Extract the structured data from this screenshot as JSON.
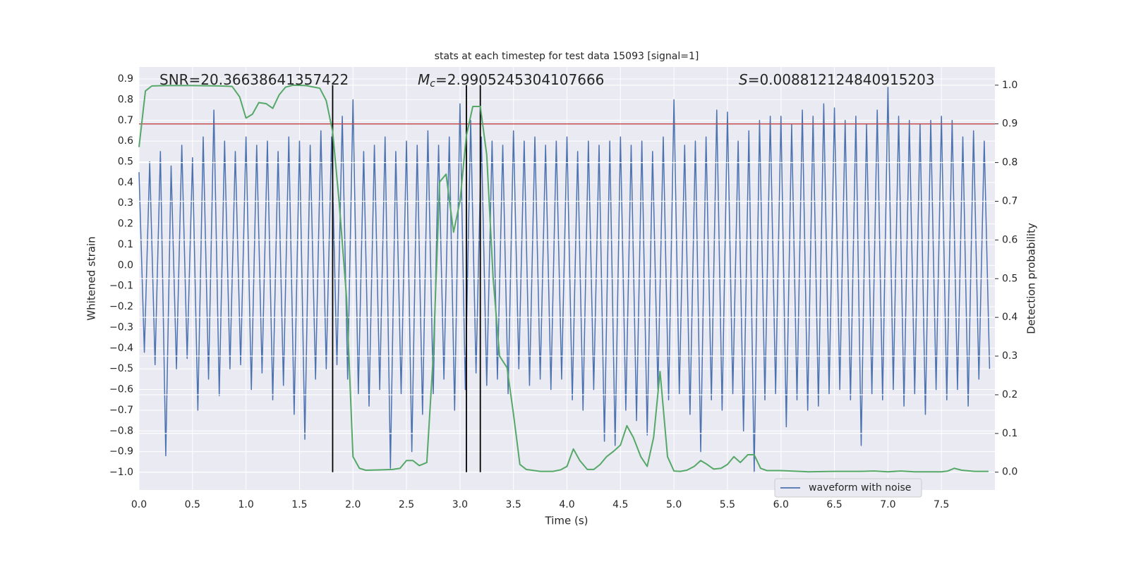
{
  "chart_data": {
    "type": "line",
    "title": "stats at each timestep for test data 15093 [signal=1]",
    "x_label": "Time (s)",
    "y_label": "Whitened strain",
    "y2_label": "Detection probability",
    "xlim": [
      0,
      8
    ],
    "ylim": [
      -1.085,
      0.958
    ],
    "y2lim": [
      -0.046,
      1.047
    ],
    "grid": true,
    "legend": "lower right",
    "xticks": [
      {
        "value": 0,
        "label": "0.0"
      },
      0.5,
      {
        "value": 1,
        "label": "1.0"
      },
      1.5,
      {
        "value": 2,
        "label": "2.0"
      },
      2.5,
      {
        "value": 3,
        "label": "3.0"
      },
      3.5,
      {
        "value": 4,
        "label": "4.0"
      },
      4.5,
      {
        "value": 5,
        "label": "5.0"
      },
      5.5,
      {
        "value": 6,
        "label": "6.0"
      },
      6.5,
      {
        "value": 7,
        "label": "7.0"
      },
      7.5
    ],
    "yticks": [
      {
        "value": -1,
        "label": "−1.0"
      },
      {
        "value": -0.9,
        "label": "−0.9"
      },
      {
        "value": -0.8,
        "label": "−0.8"
      },
      {
        "value": -0.7,
        "label": "−0.7"
      },
      {
        "value": -0.6,
        "label": "−0.6"
      },
      {
        "value": -0.5,
        "label": "−0.5"
      },
      {
        "value": -0.4,
        "label": "−0.4"
      },
      {
        "value": -0.3,
        "label": "−0.3"
      },
      {
        "value": -0.2,
        "label": "−0.2"
      },
      {
        "value": -0.1,
        "label": "−0.1"
      },
      {
        "value": 0,
        "label": "0.0"
      },
      0.1,
      0.2,
      0.3,
      0.4,
      0.5,
      0.6,
      0.7,
      0.8,
      0.9
    ],
    "y2ticks": [
      {
        "value": 0,
        "label": "0.0"
      },
      0.1,
      0.2,
      0.3,
      0.4,
      0.5,
      0.6,
      0.7,
      0.8,
      0.9,
      {
        "value": 1,
        "label": "1.0"
      }
    ],
    "threshold": {
      "value": 0.9,
      "axis": "y2",
      "color": "#c44e52"
    },
    "vlines": {
      "x": [
        1.81,
        3.06,
        3.19
      ],
      "range": [
        0,
        1
      ],
      "axis": "y2",
      "color": "#000000"
    },
    "annotations": [
      {
        "text": "SNR=20.36638641357422"
      },
      {
        "symbol": "M",
        "subscript": "c",
        "text": "=2.9905245304107666"
      },
      {
        "symbol": "S",
        "text": "=0.008812124840915203"
      }
    ],
    "series": [
      {
        "name": "waveform with noise",
        "color": "#4c72b0",
        "x": [
          0,
          0.05,
          0.1,
          0.15,
          0.2,
          0.25,
          0.3,
          0.35,
          0.4,
          0.45,
          0.5,
          0.55,
          0.6,
          0.65,
          0.7,
          0.75,
          0.8,
          0.85,
          0.9,
          0.95,
          1,
          1.05,
          1.1,
          1.15,
          1.2,
          1.25,
          1.3,
          1.35,
          1.4,
          1.45,
          1.5,
          1.55,
          1.6,
          1.65,
          1.7,
          1.75,
          1.8,
          1.85,
          1.9,
          1.95,
          2,
          2.05,
          2.1,
          2.15,
          2.2,
          2.25,
          2.3,
          2.35,
          2.4,
          2.45,
          2.5,
          2.55,
          2.6,
          2.65,
          2.7,
          2.75,
          2.8,
          2.85,
          2.9,
          2.95,
          3,
          3.05,
          3.1,
          3.15,
          3.2,
          3.25,
          3.3,
          3.35,
          3.4,
          3.45,
          3.5,
          3.55,
          3.6,
          3.65,
          3.7,
          3.75,
          3.8,
          3.85,
          3.9,
          3.95,
          4,
          4.05,
          4.1,
          4.15,
          4.2,
          4.25,
          4.3,
          4.35,
          4.4,
          4.45,
          4.5,
          4.55,
          4.6,
          4.65,
          4.7,
          4.75,
          4.8,
          4.85,
          4.9,
          4.95,
          5,
          5.05,
          5.1,
          5.15,
          5.2,
          5.25,
          5.3,
          5.35,
          5.4,
          5.45,
          5.5,
          5.55,
          5.6,
          5.65,
          5.7,
          5.75,
          5.8,
          5.85,
          5.9,
          5.95,
          6,
          6.05,
          6.1,
          6.15,
          6.2,
          6.25,
          6.3,
          6.35,
          6.4,
          6.45,
          6.5,
          6.55,
          6.6,
          6.65,
          6.7,
          6.75,
          6.8,
          6.85,
          6.9,
          6.95,
          7,
          7.05,
          7.1,
          7.15,
          7.2,
          7.25,
          7.3,
          7.35,
          7.4,
          7.45,
          7.5,
          7.55,
          7.6,
          7.65,
          7.7,
          7.75,
          7.8,
          7.85,
          7.9,
          7.95
        ],
        "values": [
          0.45,
          -0.42,
          0.5,
          -0.48,
          0.55,
          -0.92,
          0.48,
          -0.5,
          0.58,
          -0.45,
          0.52,
          -0.7,
          0.62,
          -0.55,
          0.75,
          -0.63,
          0.6,
          -0.5,
          0.55,
          -0.48,
          0.62,
          -0.6,
          0.58,
          -0.52,
          0.6,
          -0.65,
          0.55,
          -0.58,
          0.62,
          -0.72,
          0.6,
          -0.84,
          0.58,
          -0.55,
          0.65,
          -0.5,
          0.62,
          -0.48,
          0.72,
          -0.55,
          0.8,
          -0.62,
          0.55,
          -0.68,
          0.58,
          -0.6,
          0.62,
          -0.98,
          0.55,
          -0.62,
          0.6,
          -0.9,
          0.58,
          -0.72,
          0.65,
          -0.62,
          0.58,
          -0.55,
          0.62,
          -0.7,
          0.78,
          -0.6,
          0.7,
          -0.52,
          0.62,
          -0.58,
          0.6,
          -0.55,
          0.58,
          -0.62,
          0.65,
          -0.5,
          0.6,
          -0.58,
          0.62,
          -0.55,
          0.58,
          -0.6,
          0.6,
          -0.55,
          0.62,
          -0.65,
          0.55,
          -0.7,
          0.6,
          -0.6,
          0.58,
          -0.85,
          0.6,
          -0.87,
          0.62,
          -0.7,
          0.58,
          -0.75,
          0.6,
          -0.82,
          0.55,
          -0.6,
          0.62,
          -0.65,
          0.8,
          -0.62,
          0.58,
          -0.72,
          0.6,
          -0.9,
          0.62,
          -0.65,
          0.75,
          -0.7,
          0.74,
          -0.62,
          0.6,
          -0.8,
          0.65,
          -1.0,
          0.7,
          -0.65,
          0.72,
          -0.62,
          0.72,
          -0.78,
          0.68,
          -0.65,
          0.75,
          -0.7,
          0.72,
          -0.68,
          0.78,
          -0.62,
          0.76,
          -0.6,
          0.7,
          -0.65,
          0.72,
          -0.87,
          0.68,
          -0.62,
          0.75,
          -0.65,
          0.86,
          -0.6,
          0.72,
          -0.68,
          0.7,
          -0.62,
          0.68,
          -0.72,
          0.7,
          -0.6,
          0.72,
          -0.65,
          0.7,
          -0.6,
          0.62,
          -0.68,
          0.65,
          -0.55,
          0.6,
          -0.5
        ]
      },
      {
        "axis": "y2",
        "color": "#55a868",
        "x": [
          0,
          0.06,
          0.12,
          0.25,
          0.5,
          0.75,
          0.87,
          0.94,
          1.0,
          1.06,
          1.12,
          1.19,
          1.25,
          1.31,
          1.37,
          1.44,
          1.56,
          1.69,
          1.75,
          1.81,
          1.87,
          1.94,
          2.0,
          2.06,
          2.12,
          2.25,
          2.37,
          2.44,
          2.5,
          2.56,
          2.62,
          2.69,
          2.75,
          2.81,
          2.87,
          2.94,
          3.0,
          3.06,
          3.12,
          3.19,
          3.25,
          3.31,
          3.37,
          3.44,
          3.5,
          3.56,
          3.62,
          3.75,
          3.87,
          3.94,
          4.0,
          4.06,
          4.12,
          4.19,
          4.25,
          4.31,
          4.37,
          4.44,
          4.5,
          4.56,
          4.62,
          4.69,
          4.75,
          4.81,
          4.87,
          4.94,
          5.0,
          5.06,
          5.12,
          5.19,
          5.25,
          5.31,
          5.37,
          5.44,
          5.5,
          5.56,
          5.62,
          5.69,
          5.75,
          5.81,
          5.87,
          6.0,
          6.25,
          6.5,
          6.75,
          6.87,
          7.0,
          7.12,
          7.25,
          7.5,
          7.56,
          7.62,
          7.69,
          7.81,
          7.94
        ],
        "values": [
          0.84,
          0.985,
          0.998,
          0.999,
          0.999,
          0.998,
          0.997,
          0.97,
          0.915,
          0.925,
          0.955,
          0.952,
          0.94,
          0.975,
          0.995,
          1.0,
          0.999,
          0.992,
          0.96,
          0.88,
          0.7,
          0.45,
          0.04,
          0.01,
          0.005,
          0.006,
          0.007,
          0.01,
          0.03,
          0.03,
          0.017,
          0.025,
          0.3,
          0.75,
          0.77,
          0.62,
          0.7,
          0.87,
          0.945,
          0.945,
          0.82,
          0.5,
          0.3,
          0.27,
          0.15,
          0.02,
          0.007,
          0.002,
          0.002,
          0.006,
          0.015,
          0.06,
          0.03,
          0.007,
          0.007,
          0.02,
          0.04,
          0.055,
          0.07,
          0.12,
          0.09,
          0.04,
          0.015,
          0.09,
          0.26,
          0.04,
          0.003,
          0.002,
          0.005,
          0.015,
          0.03,
          0.02,
          0.008,
          0.01,
          0.02,
          0.04,
          0.025,
          0.045,
          0.045,
          0.01,
          0.004,
          0.004,
          0.001,
          0.002,
          0.002,
          0.003,
          0.001,
          0.003,
          0.001,
          0.001,
          0.003,
          0.01,
          0.005,
          0.002,
          0.002
        ]
      }
    ]
  }
}
